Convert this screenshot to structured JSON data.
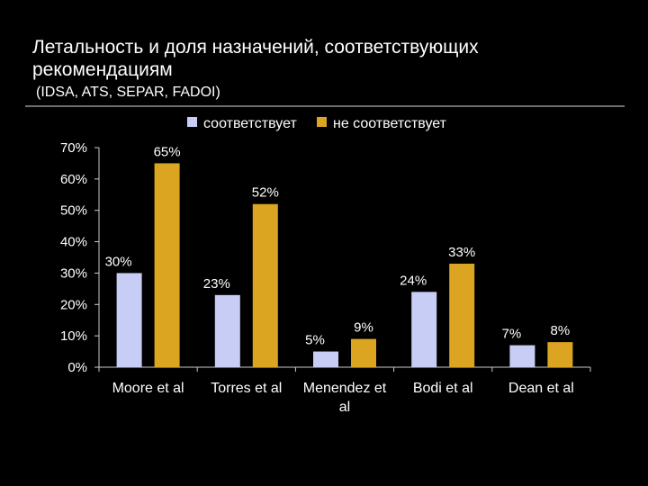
{
  "title": "Летальность и доля назначений, соответствующих рекомендациям",
  "subtitle": "(IDSA, ATS, SEPAR, FADOI)",
  "colors": {
    "background": "#000000",
    "text": "#ffffff",
    "series_1": "#c8cdf5",
    "series_2": "#dba521",
    "axis": "#cccccc"
  },
  "chart_data": {
    "type": "bar",
    "title": "Летальность и доля назначений, соответствующих рекомендациям",
    "subtitle": "(IDSA, ATS, SEPAR, FADOI)",
    "xlabel": "",
    "ylabel": "",
    "ylim": [
      0,
      70
    ],
    "y_ticks": [
      0,
      10,
      20,
      30,
      40,
      50,
      60,
      70
    ],
    "y_tick_labels": [
      "0%",
      "10%",
      "20%",
      "30%",
      "40%",
      "50%",
      "60%",
      "70%"
    ],
    "categories": [
      [
        "Moore et al"
      ],
      [
        "Torres et al"
      ],
      [
        "Menendez et",
        "al"
      ],
      [
        "Bodi et al"
      ],
      [
        "Dean et al"
      ]
    ],
    "series": [
      {
        "name": "соответствует",
        "values": [
          30,
          23,
          5,
          24,
          7
        ],
        "labels": [
          "30%",
          "23%",
          "5%",
          "24%",
          "7%"
        ]
      },
      {
        "name": "не соответствует",
        "values": [
          65,
          52,
          9,
          33,
          8
        ],
        "labels": [
          "65%",
          "52%",
          "9%",
          "33%",
          "8%"
        ]
      }
    ],
    "legend_position": "top"
  }
}
